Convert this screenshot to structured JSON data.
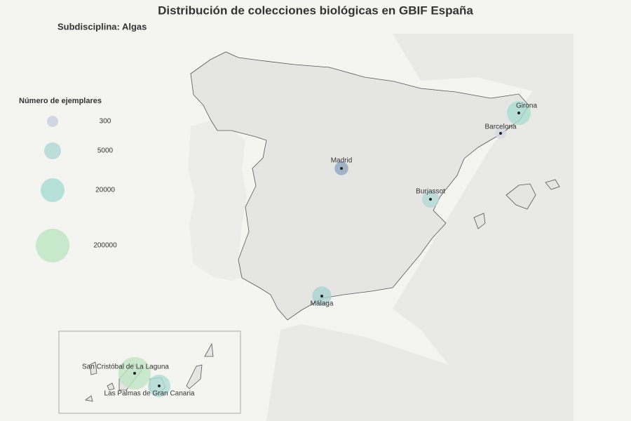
{
  "title": "Distribución de  colecciones biológicas  en GBIF España",
  "subtitle": "Subdisciplina: Algas",
  "legend": {
    "title": "Número de ejemplares",
    "entries": [
      {
        "value": 300,
        "color": "#c9d0e0"
      },
      {
        "value": 5000,
        "color": "#b2d8d6"
      },
      {
        "value": 20000,
        "color": "#a9ddd6"
      },
      {
        "value": 200000,
        "color": "#bfe5c4"
      }
    ]
  },
  "cities": [
    {
      "name": "Girona",
      "value": 20000,
      "color": "#a9ddd0"
    },
    {
      "name": "Barcelona",
      "value": 300,
      "color": "#d6d9e3"
    },
    {
      "name": "Madrid",
      "value": 1000,
      "color": "#8fa8c0"
    },
    {
      "name": "Burjassot",
      "value": 5000,
      "color": "#b2d8d6"
    },
    {
      "name": "Málaga",
      "value": 8000,
      "color": "#a9d2cf"
    },
    {
      "name": "San Cristóbal de La Laguna",
      "value": 150000,
      "color": "#bfe5c4"
    },
    {
      "name": "Las Palmas de Gran Canaria",
      "value": 15000,
      "color": "#b2dcd6"
    }
  ]
}
